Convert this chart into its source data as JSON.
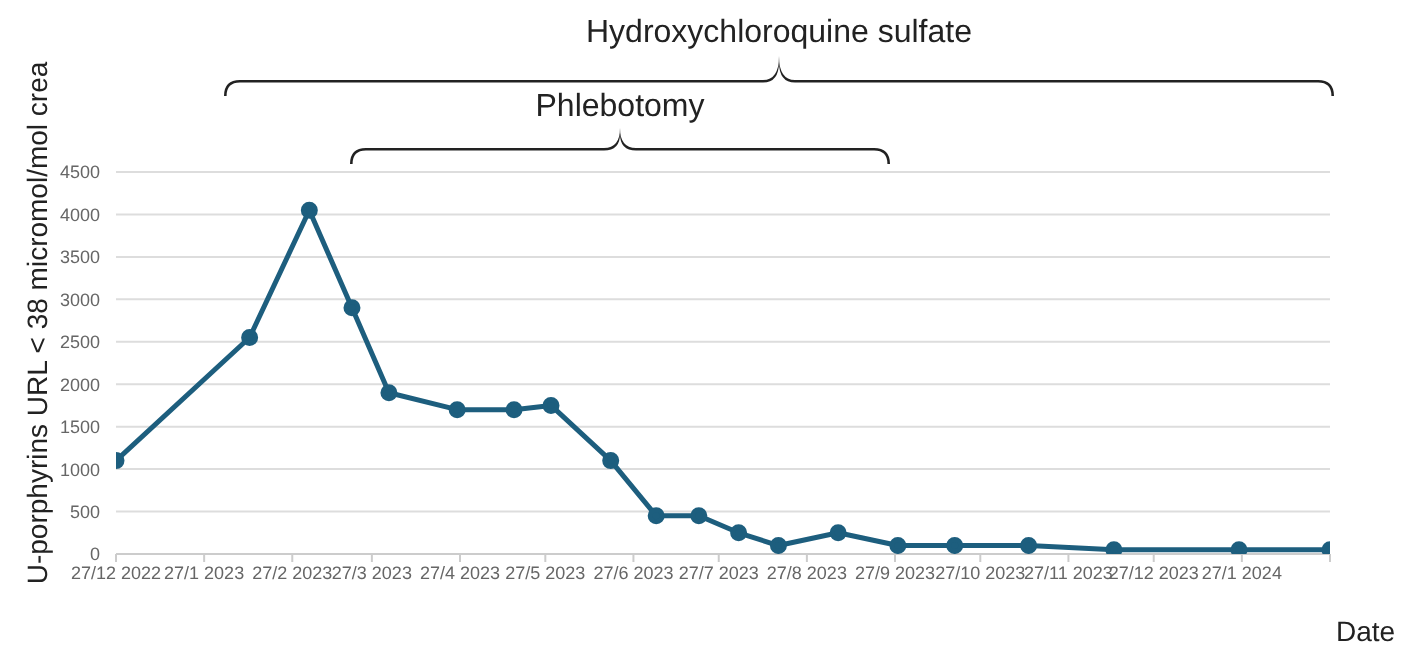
{
  "chart_data": {
    "type": "line",
    "xlabel": "Date",
    "ylabel": "U-porphyrins URL < 38 micromol/mol crea",
    "annotations": [
      "Hydroxychloroquine sulfate",
      "Phlebotomy"
    ],
    "x": [
      "2022-12-27",
      "2023-02-12",
      "2023-03-05",
      "2023-03-20",
      "2023-04-02",
      "2023-04-26",
      "2023-05-16",
      "2023-05-29",
      "2023-06-19",
      "2023-07-05",
      "2023-07-20",
      "2023-08-03",
      "2023-08-17",
      "2023-09-07",
      "2023-09-28",
      "2023-10-18",
      "2023-11-13",
      "2023-12-13",
      "2024-01-26",
      "2024-02-27"
    ],
    "series": [
      {
        "color": "#1d5e7e",
        "values": [
          1100,
          2550,
          4050,
          2900,
          1900,
          1700,
          1700,
          1750,
          1100,
          450,
          450,
          250,
          100,
          250,
          100,
          100,
          100,
          50,
          50,
          50
        ]
      }
    ],
    "xlim": [
      "2022-12-27",
      "2024-02-27"
    ],
    "xticks": [
      {
        "value": "2022-12-27",
        "label": "27/12 2022"
      },
      {
        "value": "2023-01-27",
        "label": "27/1 2023"
      },
      {
        "value": "2023-02-27",
        "label": "27/2 2023"
      },
      {
        "value": "2023-03-27",
        "label": "27/3 2023"
      },
      {
        "value": "2023-04-27",
        "label": "27/4 2023"
      },
      {
        "value": "2023-05-27",
        "label": "27/5 2023"
      },
      {
        "value": "2023-06-27",
        "label": "27/6 2023"
      },
      {
        "value": "2023-07-27",
        "label": "27/7 2023"
      },
      {
        "value": "2023-08-27",
        "label": "27/8 2023"
      },
      {
        "value": "2023-09-27",
        "label": "27/9 2023"
      },
      {
        "value": "2023-10-27",
        "label": "27/10 2023"
      },
      {
        "value": "2023-11-27",
        "label": "27/11 2023"
      },
      {
        "value": "2023-12-27",
        "label": "27/12 2023"
      },
      {
        "value": "2024-01-27",
        "label": "27/1 2024"
      },
      {
        "value": "2024-02-27",
        "label": null
      }
    ],
    "ylim": [
      0,
      4500
    ],
    "yticks": [
      0,
      500,
      1000,
      1500,
      2000,
      2500,
      3000,
      3500,
      4000,
      4500
    ],
    "grid": "y",
    "marker": "circle",
    "line_style": "solid"
  }
}
